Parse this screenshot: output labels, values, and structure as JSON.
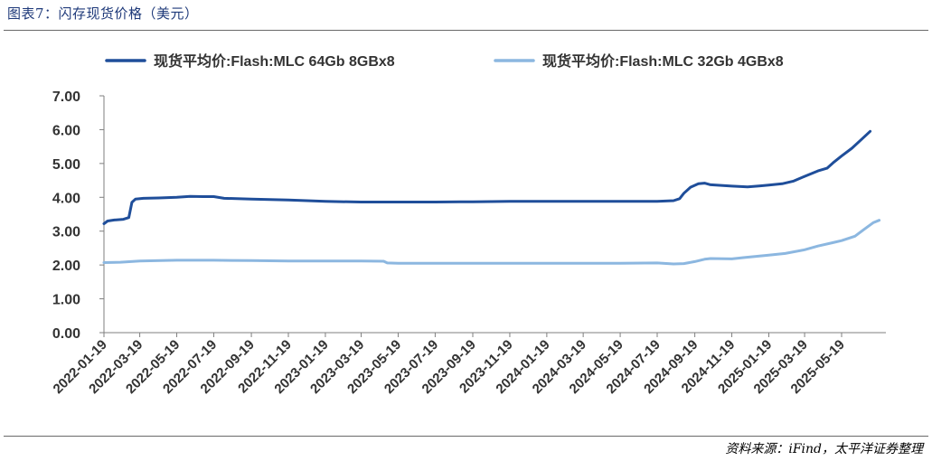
{
  "page": {
    "title": "图表7：闪存现货价格（美元）",
    "source": "资料来源：iFind，太平洋证券整理"
  },
  "chart_data": {
    "type": "line",
    "title": "",
    "xlabel": "",
    "ylabel": "",
    "ylim": [
      0,
      7
    ],
    "yticks": [
      "0.00",
      "1.00",
      "2.00",
      "3.00",
      "4.00",
      "5.00",
      "6.00",
      "7.00"
    ],
    "xlim": [
      "2022-01-19",
      "2025-07-31"
    ],
    "xticks": [
      "2022-01-19",
      "2022-03-19",
      "2022-05-19",
      "2022-07-19",
      "2022-09-19",
      "2022-11-19",
      "2023-01-19",
      "2023-03-19",
      "2023-05-19",
      "2023-07-19",
      "2023-09-19",
      "2023-11-19",
      "2024-01-19",
      "2024-03-19",
      "2024-05-19",
      "2024-07-19",
      "2024-09-19",
      "2024-11-19",
      "2025-01-19",
      "2025-03-19",
      "2025-05-19"
    ],
    "grid": false,
    "legend_position": "top",
    "series": [
      {
        "name": "现货平均价:Flash:MLC 64Gb 8GBx8",
        "color": "#1f4e9a",
        "points": [
          [
            "2022-01-19",
            3.22
          ],
          [
            "2022-01-25",
            3.3
          ],
          [
            "2022-02-05",
            3.33
          ],
          [
            "2022-02-20",
            3.35
          ],
          [
            "2022-03-01",
            3.4
          ],
          [
            "2022-03-06",
            3.85
          ],
          [
            "2022-03-12",
            3.95
          ],
          [
            "2022-03-25",
            3.97
          ],
          [
            "2022-04-19",
            3.98
          ],
          [
            "2022-05-19",
            4.0
          ],
          [
            "2022-06-10",
            4.03
          ],
          [
            "2022-07-01",
            4.02
          ],
          [
            "2022-07-19",
            4.02
          ],
          [
            "2022-08-05",
            3.97
          ],
          [
            "2022-09-19",
            3.95
          ],
          [
            "2022-11-19",
            3.92
          ],
          [
            "2023-01-19",
            3.88
          ],
          [
            "2023-03-19",
            3.86
          ],
          [
            "2023-05-19",
            3.86
          ],
          [
            "2023-07-19",
            3.86
          ],
          [
            "2023-09-19",
            3.87
          ],
          [
            "2023-11-19",
            3.88
          ],
          [
            "2024-01-19",
            3.88
          ],
          [
            "2024-03-19",
            3.88
          ],
          [
            "2024-05-19",
            3.88
          ],
          [
            "2024-07-19",
            3.88
          ],
          [
            "2024-08-15",
            3.9
          ],
          [
            "2024-08-25",
            3.96
          ],
          [
            "2024-09-01",
            4.12
          ],
          [
            "2024-09-12",
            4.3
          ],
          [
            "2024-09-25",
            4.4
          ],
          [
            "2024-10-05",
            4.42
          ],
          [
            "2024-10-15",
            4.37
          ],
          [
            "2024-11-19",
            4.33
          ],
          [
            "2024-12-15",
            4.31
          ],
          [
            "2025-01-05",
            4.34
          ],
          [
            "2025-01-19",
            4.36
          ],
          [
            "2025-02-10",
            4.4
          ],
          [
            "2025-03-01",
            4.48
          ],
          [
            "2025-03-19",
            4.62
          ],
          [
            "2025-04-10",
            4.78
          ],
          [
            "2025-04-25",
            4.86
          ],
          [
            "2025-05-05",
            5.02
          ],
          [
            "2025-05-19",
            5.22
          ],
          [
            "2025-06-05",
            5.45
          ],
          [
            "2025-06-20",
            5.7
          ],
          [
            "2025-07-05",
            5.95
          ]
        ]
      },
      {
        "name": "现货平均价:Flash:MLC 32Gb 4GBx8",
        "color": "#8cb7e0",
        "points": [
          [
            "2022-01-19",
            2.07
          ],
          [
            "2022-02-15",
            2.08
          ],
          [
            "2022-03-19",
            2.12
          ],
          [
            "2022-05-19",
            2.14
          ],
          [
            "2022-07-19",
            2.14
          ],
          [
            "2022-09-19",
            2.13
          ],
          [
            "2022-11-19",
            2.12
          ],
          [
            "2023-01-19",
            2.12
          ],
          [
            "2023-03-19",
            2.12
          ],
          [
            "2023-04-25",
            2.11
          ],
          [
            "2023-05-01",
            2.06
          ],
          [
            "2023-05-19",
            2.05
          ],
          [
            "2023-07-19",
            2.05
          ],
          [
            "2023-09-19",
            2.05
          ],
          [
            "2023-11-19",
            2.05
          ],
          [
            "2024-01-19",
            2.05
          ],
          [
            "2024-03-19",
            2.05
          ],
          [
            "2024-05-19",
            2.05
          ],
          [
            "2024-07-19",
            2.06
          ],
          [
            "2024-08-15",
            2.03
          ],
          [
            "2024-09-01",
            2.04
          ],
          [
            "2024-09-19",
            2.1
          ],
          [
            "2024-10-05",
            2.17
          ],
          [
            "2024-10-15",
            2.19
          ],
          [
            "2024-11-19",
            2.18
          ],
          [
            "2024-12-10",
            2.22
          ],
          [
            "2025-01-19",
            2.29
          ],
          [
            "2025-02-15",
            2.34
          ],
          [
            "2025-03-19",
            2.45
          ],
          [
            "2025-04-10",
            2.56
          ],
          [
            "2025-05-05",
            2.66
          ],
          [
            "2025-05-19",
            2.72
          ],
          [
            "2025-06-10",
            2.85
          ],
          [
            "2025-06-25",
            3.05
          ],
          [
            "2025-07-10",
            3.25
          ],
          [
            "2025-07-20",
            3.32
          ]
        ]
      }
    ]
  }
}
